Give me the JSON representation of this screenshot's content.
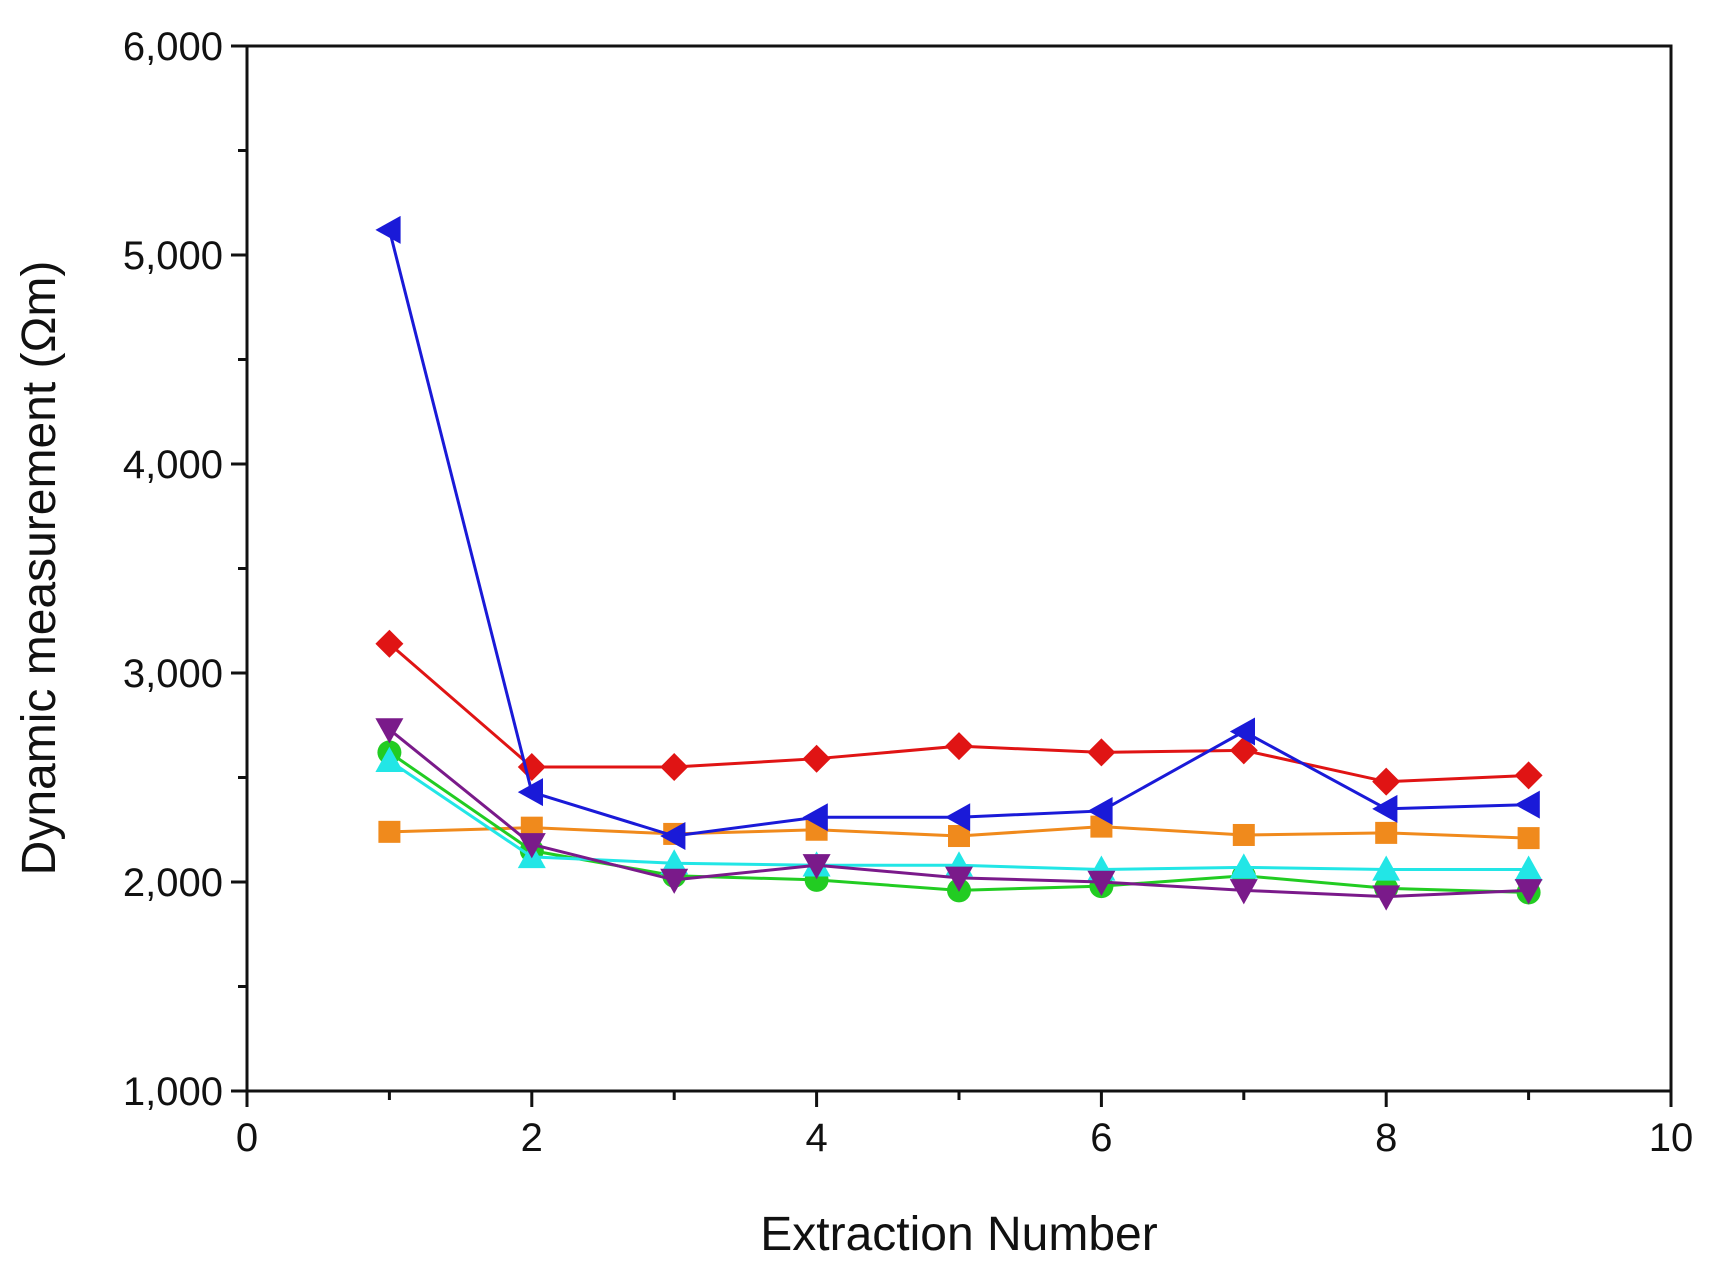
{
  "chart_data": {
    "type": "line",
    "title": "",
    "xlabel": "Extraction  Number",
    "ylabel": "Dynamic measurement (Ωm)",
    "xlim": [
      0,
      10
    ],
    "ylim": [
      1000,
      6000
    ],
    "x_ticks": [
      0,
      2,
      4,
      6,
      8,
      10
    ],
    "x_tick_labels": [
      "0",
      "2",
      "4",
      "6",
      "8",
      "10"
    ],
    "y_ticks": [
      1000,
      2000,
      3000,
      4000,
      5000,
      6000
    ],
    "y_tick_labels": [
      "1,000",
      "2,000",
      "3,000",
      "4,000",
      "5,000",
      "6,000"
    ],
    "grid": false,
    "legend": "none",
    "x": [
      1,
      2,
      3,
      4,
      5,
      6,
      7,
      8,
      9
    ],
    "series": [
      {
        "name": "orange-square",
        "marker": "square",
        "color": "#f08a1c",
        "values": [
          2240,
          2260,
          2230,
          2250,
          2220,
          2265,
          2225,
          2235,
          2210
        ]
      },
      {
        "name": "green-circle",
        "marker": "circle",
        "color": "#22cc22",
        "values": [
          2620,
          2150,
          2030,
          2010,
          1960,
          1980,
          2030,
          1970,
          1950
        ]
      },
      {
        "name": "cyan-triangle-up",
        "marker": "triangle-up",
        "color": "#22e6e6",
        "values": [
          2580,
          2120,
          2090,
          2080,
          2080,
          2060,
          2070,
          2060,
          2060
        ]
      },
      {
        "name": "purple-triangle-down",
        "marker": "triangle-down",
        "color": "#7a1a8a",
        "values": [
          2730,
          2180,
          2010,
          2080,
          2020,
          2000,
          1960,
          1930,
          1960
        ]
      },
      {
        "name": "red-diamond",
        "marker": "diamond",
        "color": "#e01414",
        "values": [
          3140,
          2550,
          2550,
          2590,
          2650,
          2620,
          2630,
          2480,
          2510
        ]
      },
      {
        "name": "blue-triangle-left",
        "marker": "triangle-left",
        "color": "#1a1ad8",
        "values": [
          5120,
          2430,
          2220,
          2310,
          2310,
          2340,
          2720,
          2350,
          2370
        ]
      }
    ]
  }
}
